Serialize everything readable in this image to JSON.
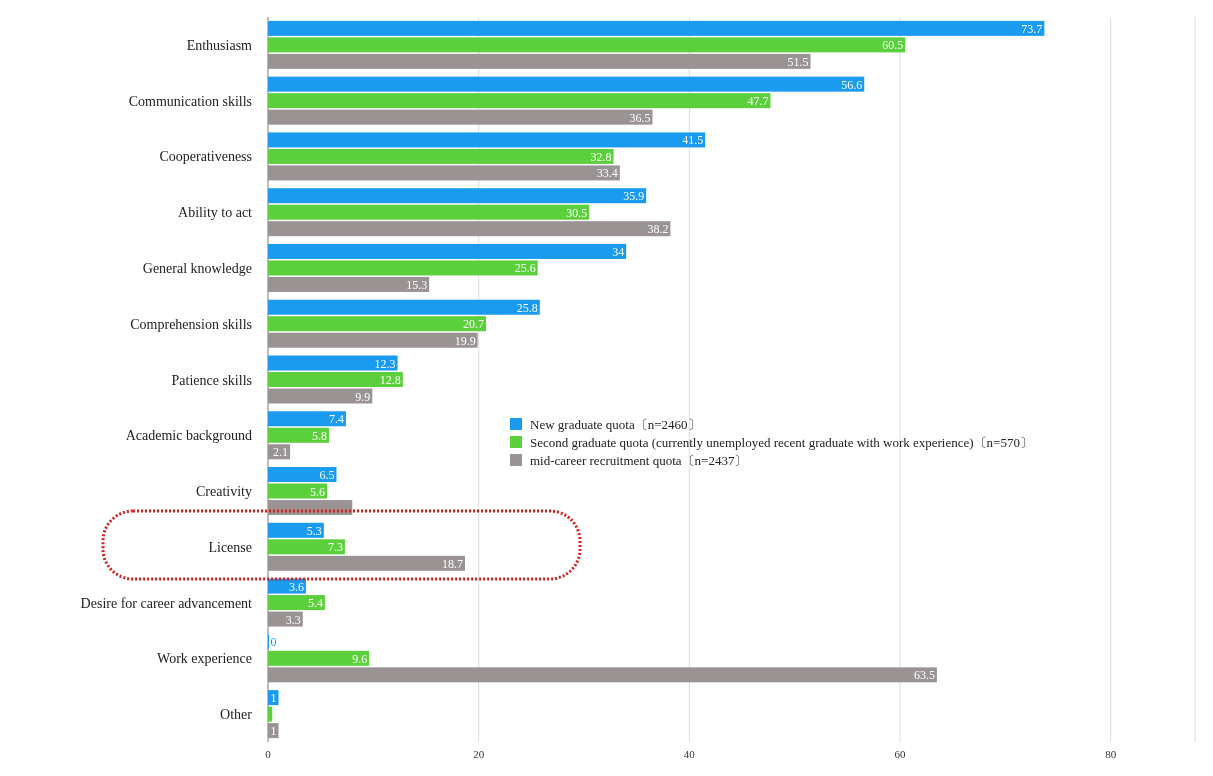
{
  "chart_data": {
    "type": "bar",
    "orientation": "horizontal",
    "categories": [
      "Enthusiasm",
      "Communication skills",
      "Cooperativeness",
      "Ability to act",
      "General knowledge",
      "Comprehension skills",
      "Patience skills",
      "Academic background",
      "Creativity",
      "License",
      "Desire for career advancement",
      "Work experience",
      "Other"
    ],
    "series": [
      {
        "name": "New graduate quota〔n=2460〕",
        "color": "#1a9bf0",
        "values": [
          73.7,
          56.6,
          41.5,
          35.9,
          34,
          25.8,
          12.3,
          7.4,
          6.5,
          5.3,
          3.6,
          0,
          1
        ],
        "value_labels": [
          "73.7",
          "56.6",
          "41.5",
          "35.9",
          "34",
          "25.8",
          "12.3",
          "7.4",
          "6.5",
          "5.3",
          "3.6",
          "0",
          "1"
        ]
      },
      {
        "name": "Second graduate quota (currently unemployed recent graduate with work experience)〔n=570〕",
        "color": "#5ccf3c",
        "values": [
          60.5,
          47.7,
          32.8,
          30.5,
          25.6,
          20.7,
          12.8,
          5.8,
          5.6,
          7.3,
          5.4,
          9.6,
          0.4
        ],
        "value_labels": [
          "60.5",
          "47.7",
          "32.8",
          "30.5",
          "25.6",
          "20.7",
          "12.8",
          "5.8",
          "5.6",
          "7.3",
          "5.4",
          "9.6",
          null
        ]
      },
      {
        "name": "mid-career recruitment quota〔n=2437〕",
        "color": "#999393",
        "values": [
          51.5,
          36.5,
          33.4,
          38.2,
          15.3,
          19.9,
          9.9,
          2.1,
          8.0,
          18.7,
          3.3,
          63.5,
          1
        ],
        "value_labels": [
          "51.5",
          "36.5",
          "33.4",
          "38.2",
          "15.3",
          "19.9",
          "9.9",
          "2.1",
          null,
          "18.7",
          "3.3",
          "63.5",
          "1"
        ]
      }
    ],
    "xlim": [
      0,
      88
    ],
    "xticks": [
      0,
      20,
      40,
      60,
      80
    ],
    "grid": "x",
    "legend": "right"
  }
}
